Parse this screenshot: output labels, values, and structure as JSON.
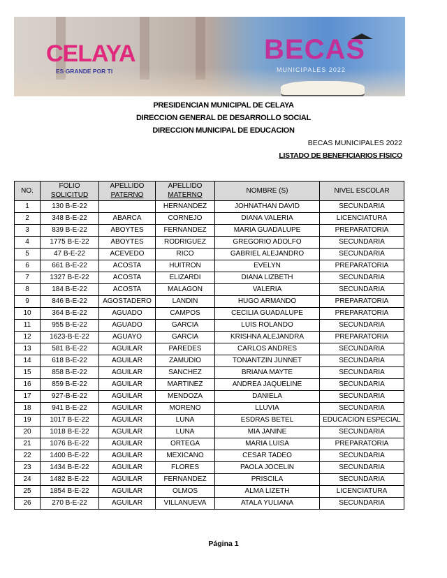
{
  "banner": {
    "logo_text": "CELAYA",
    "logo_tagline": "ES GRANDE POR TI",
    "becas_title": "BECAS",
    "becas_subtitle": "MUNICIPALES 2022"
  },
  "header": {
    "line1": "PRESIDENCIAN MUNICIPAL DE CELAYA",
    "line2": "DIRECCION GENERAL DE DESARROLLO SOCIAL",
    "line3": "DIRECCION MUNICIPAL DE EDUCACION",
    "program": "BECAS MUNICIPALES 2022",
    "list_title": "LISTADO DE BENEFICIARIOS FISICO"
  },
  "table": {
    "columns": [
      {
        "l1": "NO.",
        "l2": ""
      },
      {
        "l1": "FOLIO",
        "l2": "SOLICITUD"
      },
      {
        "l1": "APELLIDO",
        "l2": "PATERNO"
      },
      {
        "l1": "APELLIDO",
        "l2": "MATERNO"
      },
      {
        "l1": "NOMBRE (S)",
        "l2": ""
      },
      {
        "l1": "NIVEL ESCOLAR",
        "l2": ""
      }
    ],
    "rows": [
      [
        "1",
        "130 B-E-22",
        "",
        "HERNANDEZ",
        "JOHNATHAN DAVID",
        "SECUNDARIA"
      ],
      [
        "2",
        "348 B-E-22",
        "ABARCA",
        "CORNEJO",
        "DIANA VALERIA",
        "LICENCIATURA"
      ],
      [
        "3",
        "839 B-E-22",
        "ABOYTES",
        "FERNANDEZ",
        "MARIA GUADALUPE",
        "PREPARATORIA"
      ],
      [
        "4",
        "1775 B-E-22",
        "ABOYTES",
        "RODRIGUEZ",
        "GREGORIO ADOLFO",
        "SECUNDARIA"
      ],
      [
        "5",
        "47 B-E-22",
        "ACEVEDO",
        "RICO",
        "GABRIEL ALEJANDRO",
        "SECUNDARIA"
      ],
      [
        "6",
        "661 B-E-22",
        "ACOSTA",
        "HUITRON",
        "EVELYN",
        "PREPARATORIA"
      ],
      [
        "7",
        "1327 B-E-22",
        "ACOSTA",
        "ELIZARDI",
        "DIANA LIZBETH",
        "SECUNDARIA"
      ],
      [
        "8",
        "184 B-E-22",
        "ACOSTA",
        "MALAGON",
        "VALERIA",
        "SECUNDARIA"
      ],
      [
        "9",
        "846 B-E-22",
        "AGOSTADERO",
        "LANDIN",
        "HUGO ARMANDO",
        "PREPARATORIA"
      ],
      [
        "10",
        "364 B-E-22",
        "AGUADO",
        "CAMPOS",
        "CECILIA GUADALUPE",
        "PREPARATORIA"
      ],
      [
        "11",
        "955 B-E-22",
        "AGUADO",
        "GARCIA",
        "LUIS ROLANDO",
        "SECUNDARIA"
      ],
      [
        "12",
        "1623-B-E-22",
        "AGUAYO",
        "GARCIA",
        "KRISHNA ALEJANDRA",
        "PREPARATORIA"
      ],
      [
        "13",
        "581 B-E-22",
        "AGUILAR",
        "PAREDES",
        "CARLOS ANDRES",
        "SECUNDARIA"
      ],
      [
        "14",
        "618 B-E-22",
        "AGUILAR",
        "ZAMUDIO",
        "TONANTZIN JUNNET",
        "SECUNDARIA"
      ],
      [
        "15",
        "858 B-E-22",
        "AGUILAR",
        "SANCHEZ",
        "BRIANA MAYTE",
        "SECUNDARIA"
      ],
      [
        "16",
        "859 B-E-22",
        "AGUILAR",
        "MARTINEZ",
        "ANDREA JAQUELINE",
        "SECUNDARIA"
      ],
      [
        "17",
        "927-B-E-22",
        "AGUILAR",
        "MENDOZA",
        "DANIELA",
        "SECUNDARIA"
      ],
      [
        "18",
        "941 B-E-22",
        "AGUILAR",
        "MORENO",
        "LLUVIA",
        "SECUNDARIA"
      ],
      [
        "19",
        "1017 B-E-22",
        "AGUILAR",
        "LUNA",
        "ESDRAS BETEL",
        "EDUCACION ESPECIAL"
      ],
      [
        "20",
        "1018 B-E-22",
        "AGUILAR",
        "LUNA",
        "MIA JANINE",
        "SECUNDARIA"
      ],
      [
        "21",
        "1076 B-E-22",
        "AGUILAR",
        "ORTEGA",
        "MARIA LUISA",
        "PREPARATORIA"
      ],
      [
        "22",
        "1400 B-E-22",
        "AGUILAR",
        "MEXICANO",
        "CESAR TADEO",
        "SECUNDARIA"
      ],
      [
        "23",
        "1434 B-E-22",
        "AGUILAR",
        "FLORES",
        "PAOLA JOCELIN",
        "SECUNDARIA"
      ],
      [
        "24",
        "1482 B-E-22",
        "AGUILAR",
        "FERNANDEZ",
        "PRISCILA",
        "SECUNDARIA"
      ],
      [
        "25",
        "1854 B-E-22",
        "AGUILAR",
        "OLMOS",
        "ALMA LIZETH",
        "LICENCIATURA"
      ],
      [
        "26",
        "270 B-E-22",
        "AGUILAR",
        "VILLANUEVA",
        "ATALA YULIANA",
        "SECUNDARIA"
      ]
    ]
  },
  "footer": {
    "page_label": "Página 1"
  }
}
